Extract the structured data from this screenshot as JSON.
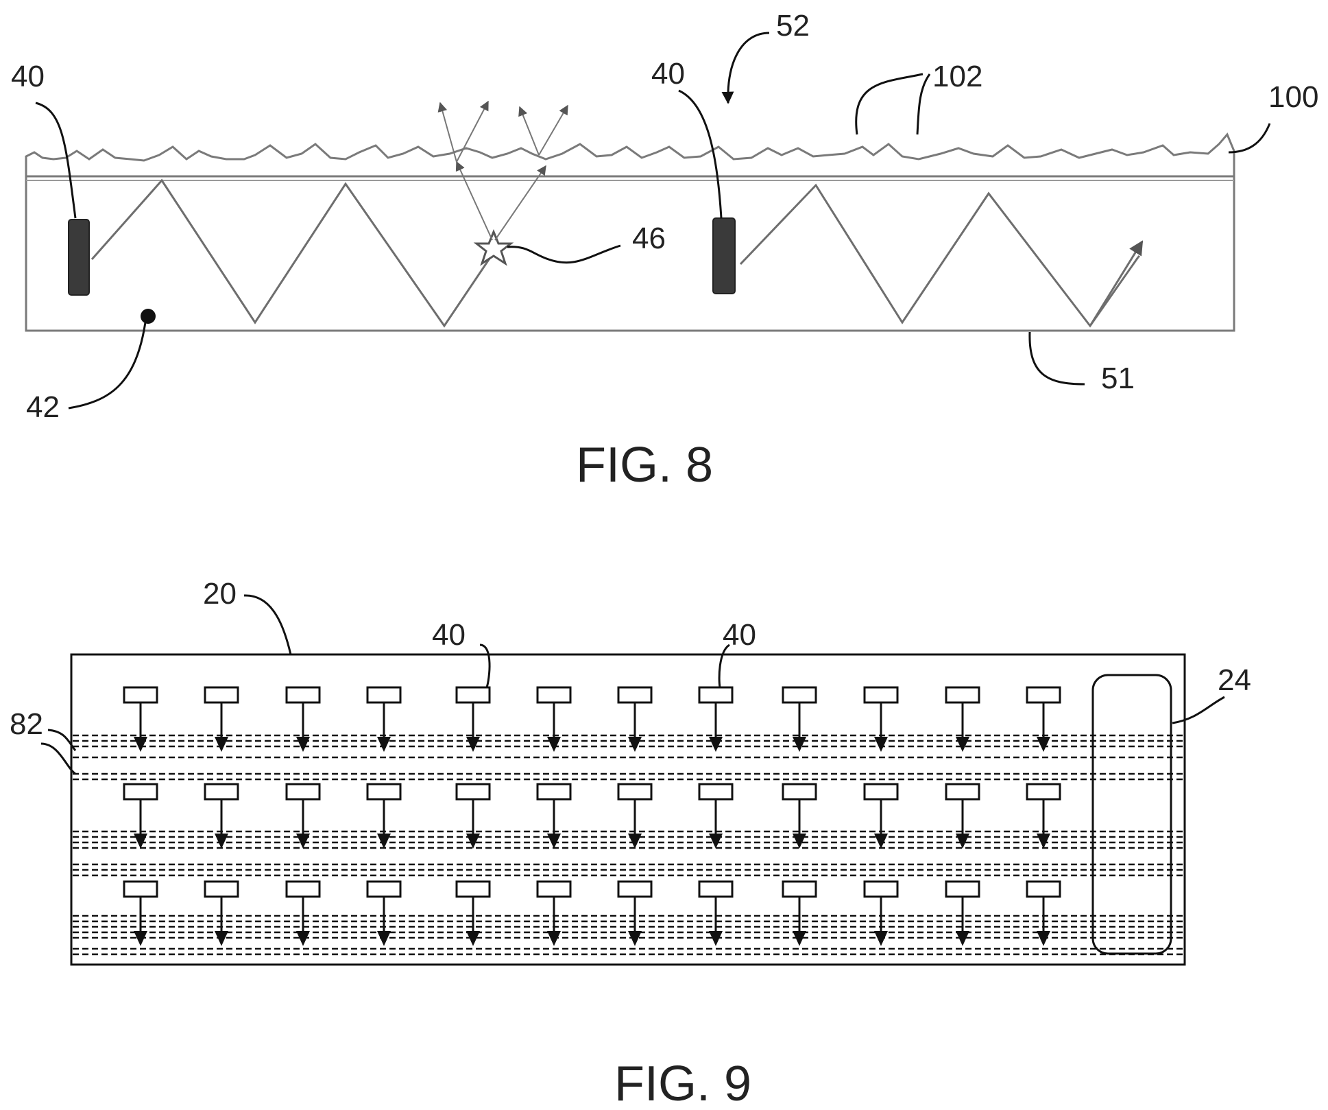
{
  "figures": [
    {
      "caption": "FIG. 8",
      "reference_numerals": {
        "emitter_left": "40",
        "emitter_right": "40",
        "top_surface": "52",
        "surface_features": "102",
        "textured_layer": "100",
        "scatter_point": "46",
        "substrate_point": "42",
        "bottom_surface": "51"
      }
    },
    {
      "caption": "FIG. 9",
      "reference_numerals": {
        "panel": "20",
        "emitter_a": "40",
        "emitter_b": "40",
        "controller": "24",
        "dashed_lines": "82"
      },
      "emitter_grid": {
        "rows": 3,
        "columns": 12
      }
    }
  ],
  "colors": {
    "ink": "#222222",
    "outline": "#7a7a7a",
    "emitter_fill": "#3a3a3a"
  }
}
